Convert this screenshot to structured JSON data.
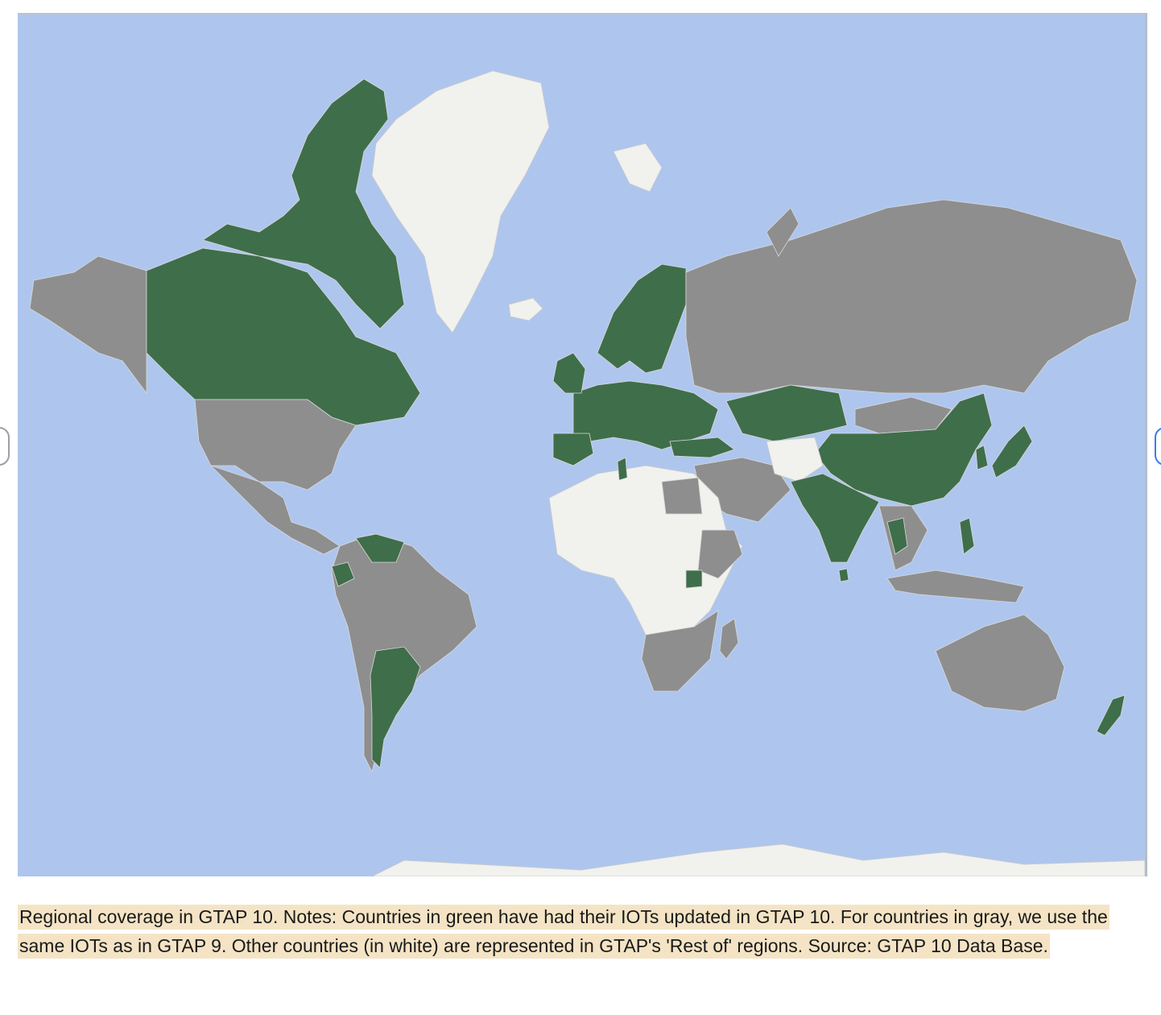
{
  "map": {
    "colors": {
      "ocean": "#aec6ee",
      "updated": "#3f6e4a",
      "same_as_gtap9": "#8e8e8e",
      "rest_of_regions": "#f1f1ee",
      "borders": "#d8d8d8"
    },
    "regions": {
      "green": [
        "Canada",
        "Greenland-adjacent Arctic islands (Canada)",
        "UK",
        "Ireland",
        "Spain",
        "Portugal",
        "Norway",
        "Sweden",
        "Finland",
        "Central Europe",
        "Eastern Europe",
        "Turkey",
        "Kazakhstan",
        "China",
        "Pakistan",
        "India",
        "Nepal",
        "Bangladesh",
        "Thailand",
        "Sri Lanka",
        "Japan",
        "South Korea",
        "Philippines",
        "Ecuador",
        "Venezuela",
        "Argentina",
        "Uganda",
        "Tunisia",
        "New Zealand"
      ],
      "gray": [
        "USA",
        "Alaska",
        "Mexico",
        "Central America",
        "Brazil",
        "Peru",
        "Colombia",
        "Chile",
        "Russia",
        "Mongolia",
        "Iran",
        "Saudi Arabia",
        "Egypt",
        "Ethiopia",
        "Southern Africa",
        "Australia",
        "Indonesia",
        "Vietnam",
        "Svalbard"
      ],
      "white": [
        "Greenland",
        "North Africa",
        "West Africa",
        "Central Africa",
        "Antarctica",
        "Iceland"
      ]
    }
  },
  "caption": {
    "text": "Regional coverage in GTAP 10. Notes: Countries in green have had their IOTs updated in GTAP 10. For countries in gray, we use the same IOTs as in GTAP 9. Other countries (in white) are represented in GTAP's 'Rest of' regions. Source: GTAP 10 Data Base."
  }
}
